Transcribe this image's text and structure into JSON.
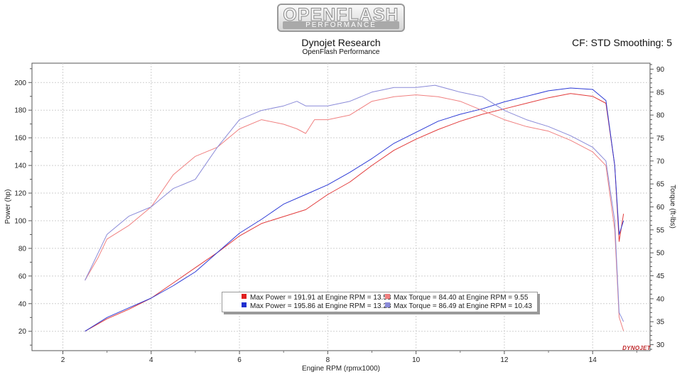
{
  "header": {
    "logo_top": "OPENFLASH",
    "logo_bottom": "PERFORMANCE",
    "title": "Dynojet Research",
    "subtitle": "OpenFlash Performance",
    "correction": "CF: STD Smoothing: 5"
  },
  "brand_text": "DYNOJET",
  "chart_data": {
    "type": "line",
    "title": "Dynojet Research",
    "subtitle": "OpenFlash Performance",
    "xlabel": "Engine RPM (rpmx1000)",
    "ylabel": "Power (hp)",
    "y2label": "Torque (ft-lbs)",
    "xlim": [
      1.3,
      15.3
    ],
    "ylim": [
      6,
      214
    ],
    "y2lim": [
      28.7,
      91.3
    ],
    "x_ticks": [
      2,
      4,
      6,
      8,
      10,
      12,
      14
    ],
    "y_ticks": [
      20,
      40,
      60,
      80,
      100,
      120,
      140,
      160,
      180,
      200
    ],
    "y2_ticks": [
      30,
      35,
      40,
      45,
      50,
      55,
      60,
      65,
      70,
      75,
      80,
      85,
      90
    ],
    "grid": true,
    "legend_position": "bottom-center",
    "series": [
      {
        "axis": "left",
        "color": "#e23a3a",
        "x": [
          2.5,
          3.0,
          3.5,
          4.0,
          4.5,
          5.0,
          5.5,
          6.0,
          6.5,
          7.0,
          7.5,
          8.0,
          8.5,
          9.0,
          9.5,
          10.0,
          10.5,
          11.0,
          11.5,
          12.0,
          12.5,
          13.0,
          13.5,
          14.0,
          14.3,
          14.5,
          14.6,
          14.7
        ],
        "values": [
          20,
          29,
          36,
          44,
          55,
          66,
          77,
          89,
          98,
          103,
          108,
          119,
          128,
          140,
          151,
          159,
          166,
          172,
          177,
          181,
          185,
          189,
          192,
          190,
          185,
          140,
          85,
          105
        ]
      },
      {
        "axis": "left",
        "color": "#2c3ad6",
        "x": [
          2.5,
          3.0,
          3.5,
          4.0,
          4.5,
          5.0,
          5.5,
          6.0,
          6.5,
          7.0,
          7.5,
          8.0,
          8.5,
          9.0,
          9.5,
          10.0,
          10.5,
          11.0,
          11.5,
          12.0,
          12.5,
          13.0,
          13.5,
          14.0,
          14.3,
          14.5,
          14.6,
          14.7
        ],
        "values": [
          20,
          30,
          37,
          44,
          53,
          63,
          77,
          91,
          101,
          112,
          119,
          126,
          135,
          145,
          156,
          164,
          172,
          177,
          181,
          186,
          190,
          194,
          196,
          195,
          187,
          140,
          90,
          100
        ]
      },
      {
        "axis": "right",
        "color": "#f08080",
        "x": [
          2.5,
          2.8,
          3.0,
          3.5,
          4.0,
          4.5,
          5.0,
          5.5,
          6.0,
          6.5,
          7.0,
          7.3,
          7.5,
          7.7,
          8.0,
          8.5,
          9.0,
          9.5,
          10.0,
          10.5,
          11.0,
          11.5,
          12.0,
          12.5,
          13.0,
          13.5,
          14.0,
          14.3,
          14.5,
          14.6,
          14.7
        ],
        "values": [
          44,
          49,
          53,
          56,
          60,
          67,
          71,
          73,
          77,
          79,
          78,
          77,
          76,
          79,
          79,
          80,
          83,
          84,
          84.4,
          84,
          83,
          81,
          79,
          77.5,
          76.5,
          74.5,
          72,
          69,
          55,
          36,
          33
        ]
      },
      {
        "axis": "right",
        "color": "#8a8ad8",
        "x": [
          2.5,
          2.8,
          3.0,
          3.5,
          4.0,
          4.5,
          5.0,
          5.5,
          6.0,
          6.5,
          7.0,
          7.3,
          7.5,
          8.0,
          8.5,
          9.0,
          9.5,
          10.0,
          10.43,
          11.0,
          11.5,
          12.0,
          12.5,
          13.0,
          13.5,
          14.0,
          14.3,
          14.5,
          14.6,
          14.7
        ],
        "values": [
          44,
          50,
          54,
          58,
          60,
          64,
          66,
          73,
          79,
          81,
          82,
          83,
          82,
          82,
          83,
          85,
          86,
          86,
          86.49,
          85,
          84,
          81,
          79,
          77.5,
          75.5,
          73,
          70,
          57,
          37,
          35
        ]
      }
    ],
    "legend": [
      {
        "color": "#e02020",
        "label": "Max Power = 191.91 at Engine RPM = 13.53"
      },
      {
        "color": "#f08080",
        "label": "Max Torque = 84.40 at Engine RPM = 9.55"
      },
      {
        "color": "#1f2fcf",
        "label": "Max Power = 195.86 at Engine RPM = 13.28"
      },
      {
        "color": "#8a8ad8",
        "label": "Max Torque = 86.49 at Engine RPM = 10.43"
      }
    ]
  }
}
